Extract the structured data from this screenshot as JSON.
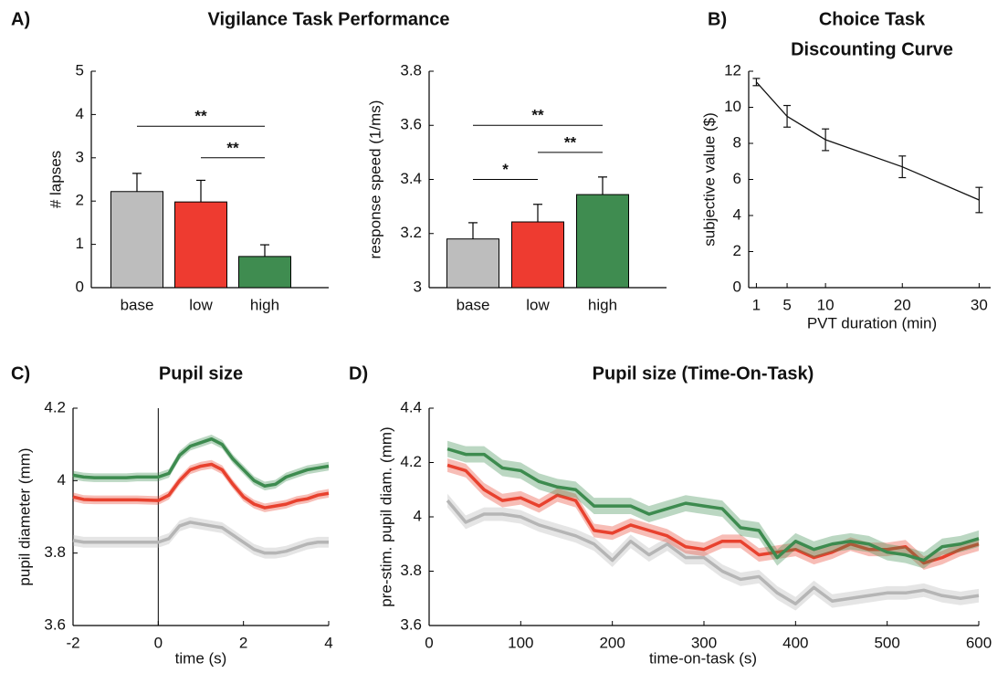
{
  "chart_data": [
    {
      "type": "bar",
      "panel_label": "A)",
      "title": "Vigilance Task Performance",
      "ylabel": "# lapses",
      "categories": [
        "base",
        "low",
        "high"
      ],
      "values": [
        2.22,
        1.98,
        0.72
      ],
      "errors": [
        0.42,
        0.5,
        0.27
      ],
      "colors": [
        "#bdbdbd",
        "#ee3b30",
        "#3f8c50"
      ],
      "ylim": [
        0,
        5
      ],
      "yticks": [
        0,
        1,
        2,
        3,
        4,
        5
      ],
      "brackets": [
        {
          "label": "**",
          "from": 0,
          "to": 2,
          "y": 3.73
        },
        {
          "label": "**",
          "from": 1,
          "to": 2,
          "y": 3.0
        }
      ]
    },
    {
      "type": "bar",
      "ylabel": "response speed (1/ms)",
      "categories": [
        "base",
        "low",
        "high"
      ],
      "values": [
        3.18,
        3.243,
        3.344
      ],
      "errors": [
        0.06,
        0.065,
        0.065
      ],
      "colors": [
        "#bdbdbd",
        "#ee3b30",
        "#3f8c50"
      ],
      "ylim": [
        3,
        3.8
      ],
      "yticks": [
        3,
        3.2,
        3.4,
        3.6,
        3.8
      ],
      "brackets": [
        {
          "label": "*",
          "from": 0,
          "to": 1,
          "y": 3.4
        },
        {
          "label": "**",
          "from": 1,
          "to": 2,
          "y": 3.5
        },
        {
          "label": "**",
          "from": 0,
          "to": 2,
          "y": 3.6
        }
      ]
    },
    {
      "type": "errorline",
      "panel_label": "B)",
      "title": [
        "Choice Task",
        "Discounting Curve"
      ],
      "xlabel": "PVT duration (min)",
      "ylabel": "subjective value ($)",
      "x": [
        1,
        5,
        10,
        20,
        30
      ],
      "values": [
        11.4,
        9.5,
        8.2,
        6.7,
        4.86
      ],
      "errors": [
        0.2,
        0.6,
        0.6,
        0.6,
        0.7
      ],
      "color": "#111111",
      "xlim": [
        0,
        31.5
      ],
      "xticks": [
        1,
        5,
        10,
        20,
        30
      ],
      "ylim": [
        0,
        12
      ],
      "yticks": [
        0,
        2,
        4,
        6,
        8,
        10,
        12
      ]
    },
    {
      "type": "bandline",
      "panel_label": "C)",
      "title": "Pupil size",
      "xlabel": "time (s)",
      "ylabel": "pupil diameter (mm)",
      "x": [
        -2,
        -1.75,
        -1.5,
        -1.25,
        -1,
        -0.75,
        -0.5,
        -0.25,
        0,
        0.25,
        0.5,
        0.75,
        1,
        1.25,
        1.5,
        1.75,
        2,
        2.25,
        2.5,
        2.75,
        3,
        3.25,
        3.5,
        3.75,
        4
      ],
      "vline": 0,
      "series": [
        {
          "color": "#b5b5b5",
          "values": [
            3.835,
            3.83,
            3.83,
            3.83,
            3.83,
            3.83,
            3.83,
            3.83,
            3.83,
            3.84,
            3.875,
            3.885,
            3.88,
            3.875,
            3.87,
            3.85,
            3.83,
            3.81,
            3.8,
            3.8,
            3.805,
            3.815,
            3.825,
            3.83,
            3.83
          ],
          "errors": [
            0.015,
            0.015,
            0.015,
            0.015,
            0.015,
            0.015,
            0.015,
            0.015,
            0.015,
            0.015,
            0.015,
            0.015,
            0.015,
            0.015,
            0.015,
            0.015,
            0.015,
            0.015,
            0.015,
            0.015,
            0.015,
            0.015,
            0.015,
            0.015,
            0.015
          ]
        },
        {
          "color": "#e8412e",
          "values": [
            3.955,
            3.948,
            3.947,
            3.947,
            3.947,
            3.947,
            3.947,
            3.946,
            3.945,
            3.96,
            4.0,
            4.03,
            4.04,
            4.045,
            4.03,
            3.99,
            3.955,
            3.935,
            3.925,
            3.93,
            3.935,
            3.945,
            3.95,
            3.96,
            3.965
          ],
          "errors": [
            0.012,
            0.012,
            0.012,
            0.012,
            0.012,
            0.012,
            0.012,
            0.012,
            0.012,
            0.012,
            0.012,
            0.012,
            0.012,
            0.012,
            0.012,
            0.012,
            0.012,
            0.012,
            0.012,
            0.012,
            0.012,
            0.012,
            0.012,
            0.012,
            0.012
          ]
        },
        {
          "color": "#3d8b4f",
          "values": [
            4.015,
            4.01,
            4.008,
            4.008,
            4.008,
            4.008,
            4.01,
            4.01,
            4.01,
            4.02,
            4.07,
            4.095,
            4.105,
            4.115,
            4.1,
            4.06,
            4.03,
            4.0,
            3.985,
            3.99,
            4.01,
            4.02,
            4.03,
            4.035,
            4.04
          ],
          "errors": [
            0.012,
            0.012,
            0.012,
            0.012,
            0.012,
            0.012,
            0.012,
            0.012,
            0.012,
            0.012,
            0.012,
            0.012,
            0.012,
            0.012,
            0.012,
            0.012,
            0.012,
            0.012,
            0.012,
            0.012,
            0.012,
            0.012,
            0.012,
            0.012,
            0.012
          ]
        }
      ],
      "xlim": [
        -2,
        4
      ],
      "xticks": [
        -2,
        0,
        2,
        4
      ],
      "ylim": [
        3.6,
        4.2
      ],
      "yticks": [
        3.6,
        3.8,
        4,
        4.2
      ]
    },
    {
      "type": "bandline",
      "panel_label": "D)",
      "title": "Pupil size (Time-On-Task)",
      "xlabel": "time-on-task (s)",
      "ylabel": "pre-stim. pupil diam. (mm)",
      "x": [
        20,
        40,
        60,
        80,
        100,
        120,
        140,
        160,
        180,
        200,
        220,
        240,
        260,
        280,
        300,
        320,
        340,
        360,
        380,
        400,
        420,
        440,
        460,
        480,
        500,
        520,
        540,
        560,
        580,
        600
      ],
      "series": [
        {
          "color": "#b5b5b5",
          "values": [
            4.06,
            3.98,
            4.01,
            4.01,
            4.0,
            3.97,
            3.95,
            3.93,
            3.9,
            3.84,
            3.91,
            3.86,
            3.9,
            3.85,
            3.85,
            3.8,
            3.77,
            3.78,
            3.72,
            3.68,
            3.74,
            3.69,
            3.7,
            3.71,
            3.72,
            3.72,
            3.73,
            3.71,
            3.7,
            3.71
          ],
          "errors": [
            0.025,
            0.025,
            0.025,
            0.025,
            0.025,
            0.025,
            0.025,
            0.025,
            0.025,
            0.025,
            0.025,
            0.025,
            0.025,
            0.025,
            0.025,
            0.025,
            0.025,
            0.025,
            0.025,
            0.025,
            0.025,
            0.025,
            0.025,
            0.025,
            0.025,
            0.025,
            0.025,
            0.025,
            0.025,
            0.025
          ]
        },
        {
          "color": "#e8412e",
          "values": [
            4.19,
            4.17,
            4.1,
            4.06,
            4.07,
            4.04,
            4.08,
            4.06,
            3.95,
            3.94,
            3.97,
            3.95,
            3.93,
            3.89,
            3.88,
            3.91,
            3.91,
            3.86,
            3.87,
            3.88,
            3.85,
            3.87,
            3.9,
            3.88,
            3.88,
            3.89,
            3.83,
            3.85,
            3.88,
            3.9
          ],
          "errors": [
            0.025,
            0.025,
            0.025,
            0.025,
            0.025,
            0.025,
            0.025,
            0.025,
            0.025,
            0.025,
            0.025,
            0.025,
            0.025,
            0.025,
            0.025,
            0.025,
            0.025,
            0.025,
            0.025,
            0.025,
            0.025,
            0.025,
            0.025,
            0.025,
            0.025,
            0.025,
            0.025,
            0.025,
            0.025,
            0.025
          ]
        },
        {
          "color": "#3d8b4f",
          "values": [
            4.25,
            4.23,
            4.23,
            4.18,
            4.17,
            4.13,
            4.11,
            4.1,
            4.04,
            4.04,
            4.04,
            4.01,
            4.03,
            4.05,
            4.04,
            4.03,
            3.96,
            3.95,
            3.85,
            3.91,
            3.88,
            3.9,
            3.91,
            3.9,
            3.87,
            3.86,
            3.84,
            3.89,
            3.9,
            3.92
          ],
          "errors": [
            0.03,
            0.03,
            0.03,
            0.03,
            0.03,
            0.03,
            0.03,
            0.03,
            0.03,
            0.03,
            0.03,
            0.03,
            0.03,
            0.03,
            0.03,
            0.03,
            0.03,
            0.03,
            0.03,
            0.03,
            0.03,
            0.03,
            0.03,
            0.03,
            0.03,
            0.03,
            0.03,
            0.03,
            0.03,
            0.03
          ]
        }
      ],
      "xlim": [
        0,
        600
      ],
      "xticks": [
        0,
        100,
        200,
        300,
        400,
        500,
        600
      ],
      "ylim": [
        3.6,
        4.4
      ],
      "yticks": [
        3.6,
        3.8,
        4,
        4.2,
        4.4
      ]
    }
  ]
}
